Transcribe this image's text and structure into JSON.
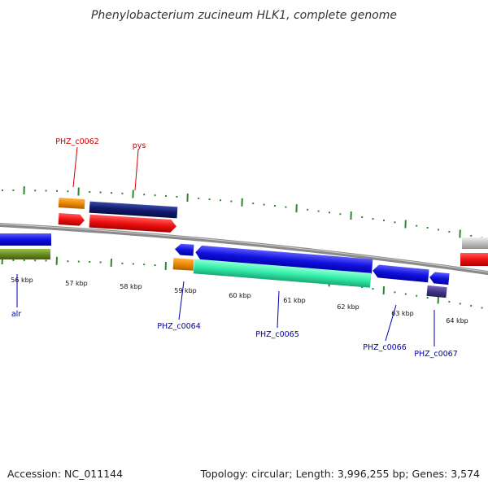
{
  "header": {
    "title": "Phenylobacterium zucineum HLK1, complete genome"
  },
  "footer": {
    "accession": "Accession: NC_011144",
    "summary": "Topology: circular; Length: 3,996,255 bp; Genes: 3,574"
  },
  "scale": {
    "ticks": [
      "56 kbp",
      "57 kbp",
      "58 kbp",
      "59 kbp",
      "60 kbp",
      "61 kbp",
      "62 kbp",
      "63 kbp",
      "64 kbp"
    ]
  },
  "genes": [
    {
      "label": "PHZ_c0062",
      "strand": "forward",
      "color": "#cc0000"
    },
    {
      "label": "pys",
      "strand": "forward",
      "color": "#cc0000"
    },
    {
      "label": "alr",
      "strand": "reverse",
      "color": "#0000aa"
    },
    {
      "label": "PHZ_c0064",
      "strand": "reverse",
      "color": "#0000aa"
    },
    {
      "label": "PHZ_c0065",
      "strand": "reverse",
      "color": "#0000aa"
    },
    {
      "label": "PHZ_c0066",
      "strand": "reverse",
      "color": "#0000aa"
    },
    {
      "label": "PHZ_c0067",
      "strand": "reverse",
      "color": "#0000aa"
    }
  ],
  "colors": {
    "backbone": "#888888",
    "tick_marks": "#2a8a2a",
    "forward_cds": "#ee1111",
    "reverse_cds": "#1111dd",
    "cog_orange": "#ee8800",
    "cog_navy": "#111a6e",
    "cog_aqua": "#33eeaa",
    "cog_olive": "#6b8e23",
    "cog_purple": "#443388",
    "cog_grey": "#c0c0c0"
  }
}
